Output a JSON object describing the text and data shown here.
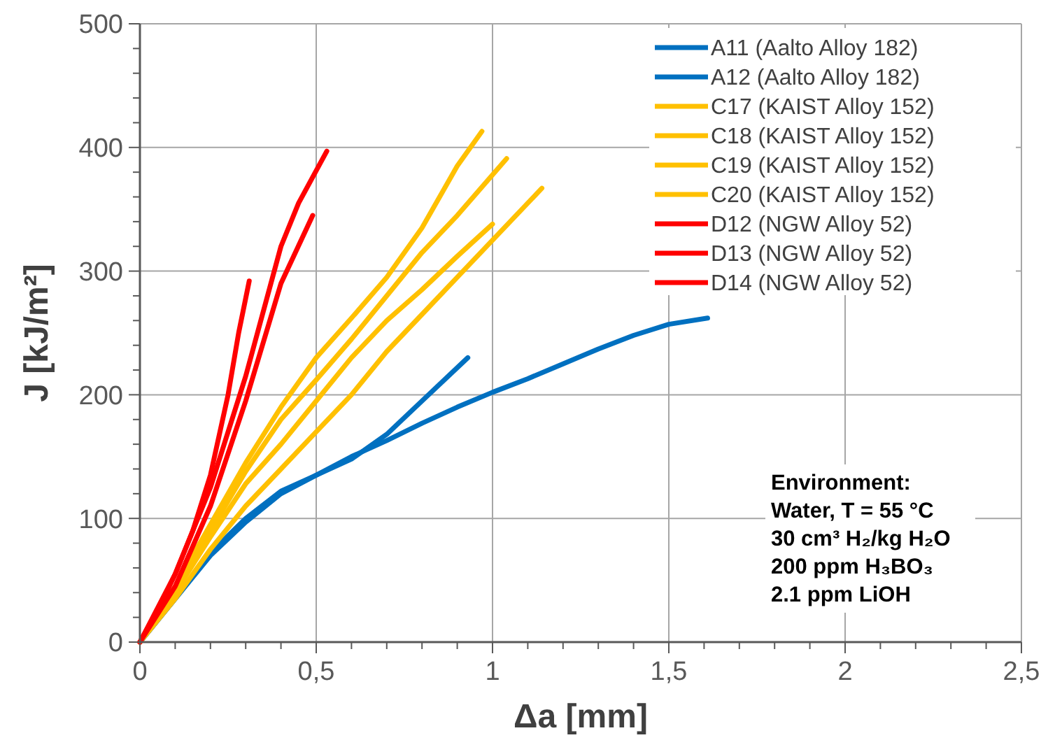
{
  "chart_data": {
    "type": "line",
    "xlabel": "Δa [mm]",
    "ylabel": "J [kJ/m²]",
    "xlim": [
      0,
      2.5
    ],
    "ylim": [
      0,
      500
    ],
    "xticks": [
      0,
      {
        "value": 0.1,
        "label": null
      },
      {
        "value": 0.2,
        "label": null
      },
      {
        "value": 0.3,
        "label": null
      },
      {
        "value": 0.4,
        "label": null
      },
      {
        "value": 0.5,
        "label": "0,5"
      },
      {
        "value": 0.6,
        "label": null
      },
      {
        "value": 0.7,
        "label": null
      },
      {
        "value": 0.8,
        "label": null
      },
      {
        "value": 0.9,
        "label": null
      },
      1,
      {
        "value": 1.1,
        "label": null
      },
      {
        "value": 1.2,
        "label": null
      },
      {
        "value": 1.3,
        "label": null
      },
      {
        "value": 1.4,
        "label": null
      },
      {
        "value": 1.5,
        "label": "1,5"
      },
      {
        "value": 1.6,
        "label": null
      },
      {
        "value": 1.7,
        "label": null
      },
      {
        "value": 1.8,
        "label": null
      },
      {
        "value": 1.9,
        "label": null
      },
      2,
      {
        "value": 2.1,
        "label": null
      },
      {
        "value": 2.2,
        "label": null
      },
      {
        "value": 2.3,
        "label": null
      },
      {
        "value": 2.4,
        "label": null
      },
      {
        "value": 2.5,
        "label": "2,5"
      }
    ],
    "yticks": [
      0,
      {
        "value": 20,
        "label": null
      },
      {
        "value": 40,
        "label": null
      },
      {
        "value": 60,
        "label": null
      },
      {
        "value": 80,
        "label": null
      },
      100,
      {
        "value": 120,
        "label": null
      },
      {
        "value": 140,
        "label": null
      },
      {
        "value": 160,
        "label": null
      },
      {
        "value": 180,
        "label": null
      },
      200,
      {
        "value": 220,
        "label": null
      },
      {
        "value": 240,
        "label": null
      },
      {
        "value": 260,
        "label": null
      },
      {
        "value": 280,
        "label": null
      },
      300,
      {
        "value": 320,
        "label": null
      },
      {
        "value": 340,
        "label": null
      },
      {
        "value": 360,
        "label": null
      },
      {
        "value": 380,
        "label": null
      },
      400,
      {
        "value": 420,
        "label": null
      },
      {
        "value": 440,
        "label": null
      },
      {
        "value": 460,
        "label": null
      },
      {
        "value": 480,
        "label": null
      },
      500
    ],
    "grid": true,
    "legend": "top right",
    "line_style": "solid",
    "annotations": [
      "Environment:\nWater, T = 55 °C\n30 cm³ H₂/kg H₂O\n200 ppm H₃BO₃\n2.1 ppm LiOH"
    ],
    "series": [
      {
        "name": "A11 (Aalto Alloy 182)",
        "color": "#0070c0",
        "x": [
          0,
          0.1,
          0.2,
          0.3,
          0.4,
          0.5,
          0.6,
          0.7,
          0.8,
          0.9,
          1.0,
          1.1,
          1.2,
          1.3,
          1.4,
          1.5,
          1.61
        ],
        "values": [
          0,
          35,
          70,
          97,
          120,
          135,
          150,
          163,
          177,
          190,
          202,
          213,
          225,
          237,
          248,
          257,
          262
        ]
      },
      {
        "name": "A12 (Aalto Alloy 182)",
        "color": "#0070c0",
        "x": [
          0,
          0.1,
          0.2,
          0.3,
          0.4,
          0.5,
          0.6,
          0.7,
          0.8,
          0.93
        ],
        "values": [
          0,
          35,
          72,
          100,
          122,
          135,
          148,
          168,
          195,
          230
        ]
      },
      {
        "name": "C17 (KAIST Alloy 152)",
        "color": "#ffc000",
        "x": [
          0,
          0.1,
          0.2,
          0.3,
          0.4,
          0.5,
          0.6,
          0.7,
          0.8,
          0.9,
          0.97
        ],
        "values": [
          0,
          45,
          95,
          145,
          190,
          230,
          262,
          295,
          335,
          385,
          413
        ]
      },
      {
        "name": "C18 (KAIST Alloy 152)",
        "color": "#ffc000",
        "x": [
          0,
          0.1,
          0.2,
          0.3,
          0.4,
          0.5,
          0.6,
          0.7,
          0.8,
          0.9,
          1.04
        ],
        "values": [
          0,
          42,
          90,
          138,
          180,
          212,
          245,
          280,
          315,
          345,
          391
        ]
      },
      {
        "name": "C19 (KAIST Alloy 152)",
        "color": "#ffc000",
        "x": [
          0,
          0.1,
          0.2,
          0.3,
          0.4,
          0.5,
          0.6,
          0.7,
          0.8,
          0.9,
          1.0
        ],
        "values": [
          0,
          40,
          85,
          128,
          160,
          195,
          230,
          260,
          285,
          312,
          338
        ]
      },
      {
        "name": "C20 (KAIST Alloy 152)",
        "color": "#ffc000",
        "x": [
          0,
          0.1,
          0.2,
          0.3,
          0.4,
          0.5,
          0.6,
          0.7,
          0.8,
          0.9,
          1.0,
          1.14
        ],
        "values": [
          0,
          35,
          75,
          110,
          140,
          170,
          200,
          235,
          265,
          295,
          325,
          367
        ]
      },
      {
        "name": "D12 (NGW Alloy 52)",
        "color": "#ff0000",
        "x": [
          0,
          0.05,
          0.1,
          0.15,
          0.2,
          0.25,
          0.28,
          0.31
        ],
        "values": [
          0,
          25,
          55,
          90,
          135,
          200,
          250,
          292
        ]
      },
      {
        "name": "D13 (NGW Alloy 52)",
        "color": "#ff0000",
        "x": [
          0,
          0.1,
          0.2,
          0.3,
          0.4,
          0.49
        ],
        "values": [
          0,
          45,
          110,
          195,
          290,
          345
        ]
      },
      {
        "name": "D14 (NGW Alloy 52)",
        "color": "#ff0000",
        "x": [
          0,
          0.1,
          0.2,
          0.3,
          0.4,
          0.45,
          0.53
        ],
        "values": [
          0,
          55,
          125,
          215,
          320,
          355,
          397
        ]
      }
    ]
  }
}
